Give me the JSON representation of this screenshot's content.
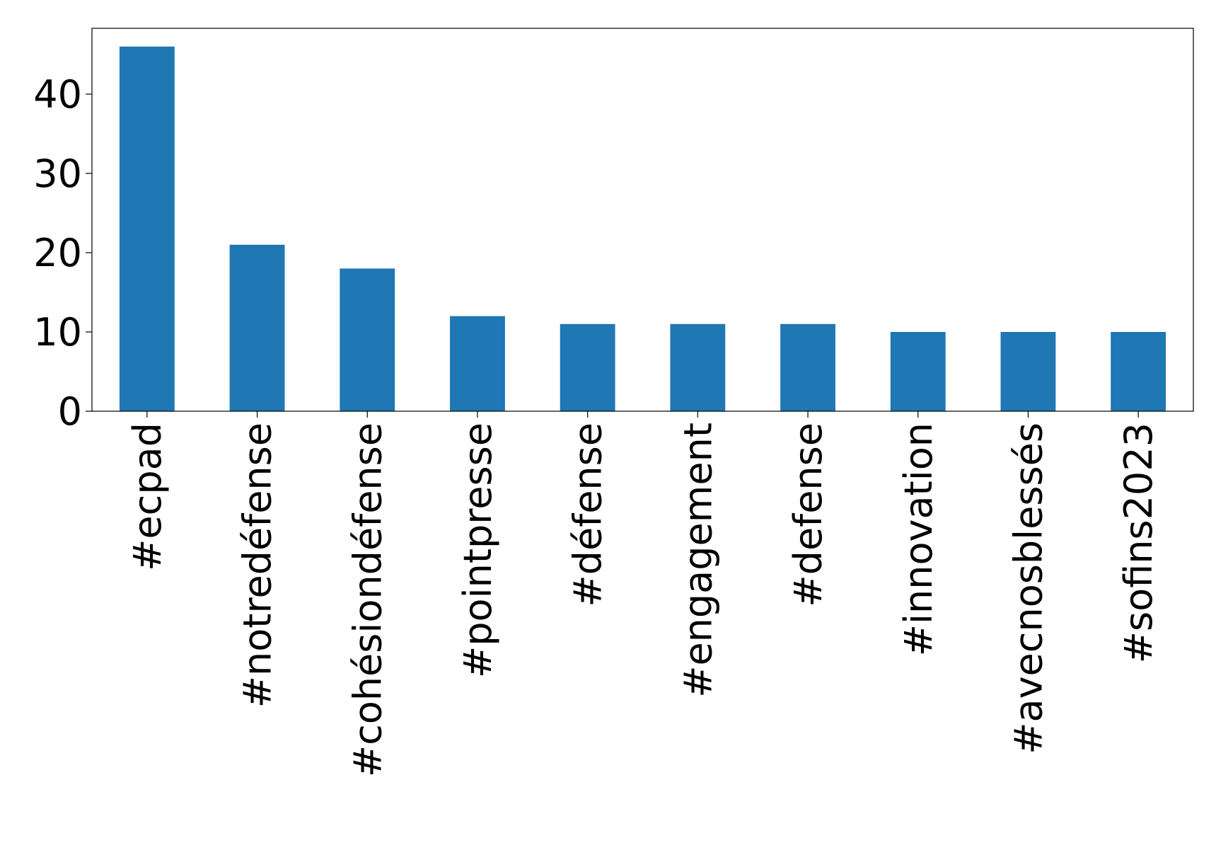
{
  "chart_data": {
    "type": "bar",
    "categories": [
      "#ecpad",
      "#notredéfense",
      "#cohésiondéfense",
      "#pointpresse",
      "#défense",
      "#engagement",
      "#defense",
      "#innovation",
      "#avecnosblessés",
      "#sofins2023"
    ],
    "values": [
      46,
      21,
      18,
      12,
      11,
      11,
      11,
      10,
      10,
      10
    ],
    "color": "#1f77b4",
    "ylim": [
      0,
      48.3
    ],
    "yticks": [
      0,
      10,
      20,
      30,
      40
    ],
    "grid": false
  }
}
